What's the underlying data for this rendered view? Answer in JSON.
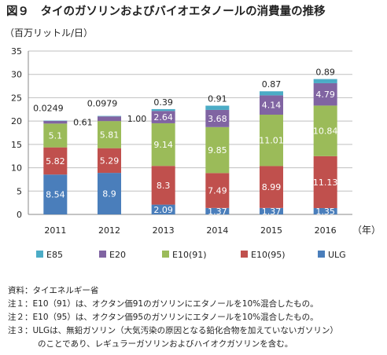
{
  "title": "図９　タイのガソリンおよびバイオエタノールの消費量の推移",
  "unit": "（百万リットル/日）",
  "year_unit": "（年）",
  "chart_data": {
    "type": "bar",
    "stacked": true,
    "categories": [
      "2011",
      "2012",
      "2013",
      "2014",
      "2015",
      "2016"
    ],
    "ylim": [
      0,
      35
    ],
    "yticks": [
      0,
      5,
      10,
      15,
      20,
      25,
      30,
      35
    ],
    "grid": true,
    "legend_position": "bottom",
    "series": [
      {
        "name": "ULG",
        "color": "#4a7ebb",
        "values": [
          8.54,
          8.9,
          2.09,
          1.37,
          1.37,
          1.35
        ],
        "labels": [
          "8.54",
          "8.9",
          "2.09",
          "1.37",
          "1.37",
          "1.35"
        ]
      },
      {
        "name": "E10(95)",
        "color": "#c0504d",
        "values": [
          5.82,
          5.29,
          8.3,
          7.49,
          8.99,
          11.13
        ],
        "labels": [
          "5.82",
          "5.29",
          "8.3",
          "7.49",
          "8.99",
          "11.13"
        ]
      },
      {
        "name": "E10(91)",
        "color": "#9bbb59",
        "values": [
          5.1,
          5.81,
          9.14,
          9.85,
          11.01,
          10.84
        ],
        "labels": [
          "5.1",
          "5.81",
          "9.14",
          "9.85",
          "11.01",
          "10.84"
        ]
      },
      {
        "name": "E20",
        "color": "#8064a2",
        "values": [
          0.61,
          1.0,
          2.64,
          3.68,
          4.14,
          4.79
        ],
        "labels": [
          "0.61",
          "1.00",
          "2.64",
          "3.68",
          "4.14",
          "4.79"
        ]
      },
      {
        "name": "E85",
        "color": "#4bacc6",
        "values": [
          0.0249,
          0.0979,
          0.39,
          0.91,
          0.87,
          0.89
        ],
        "labels": [
          "0.0249",
          "0.0979",
          "0.39",
          "0.91",
          "0.87",
          "0.89"
        ]
      }
    ],
    "legend_order": [
      "E85",
      "E20",
      "E10(91)",
      "E10(95)",
      "ULG"
    ]
  },
  "notes": {
    "source": "資料：タイエネルギー省",
    "note1": "注１：E10（91）は、オクタン価91のガソリンにエタノールを10%混合したもの。",
    "note2": "注２：E10（95）は、オクタン価95のガソリンにエタノールを10%混合したもの。",
    "note3": "注３：ULGは、無鉛ガソリン（大気汚染の原因となる鉛化合物を加えていないガソリン）",
    "note3b": "のことであり、レギュラーガソリンおよびハイオクガソリンを含む。"
  }
}
